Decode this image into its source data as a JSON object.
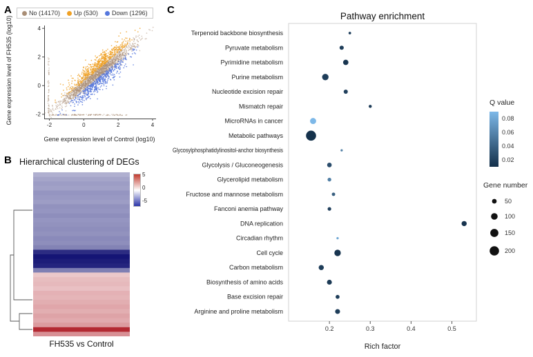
{
  "labels": {
    "a": "A",
    "b": "B",
    "c": "C"
  },
  "chart_data": [
    {
      "id": "deg_scatter",
      "type": "scatter",
      "xlabel": "Gene expression level of Control (log10)",
      "ylabel": "Gene expression level of FH535 (log10)",
      "xlim": [
        -2.3,
        4.2
      ],
      "ylim": [
        -2.3,
        4.2
      ],
      "ticks": [
        -2,
        0,
        2,
        4
      ],
      "seed": 123457,
      "series": [
        {
          "name": "No (14170)",
          "count": 14170,
          "color": "#a98e76",
          "rendered_points": 1600
        },
        {
          "name": "Up (530)",
          "count": 530,
          "color": "#f0a125",
          "rendered_points": 520
        },
        {
          "name": "Down (1296)",
          "count": 1296,
          "color": "#5577dd",
          "rendered_points": 470
        }
      ]
    },
    {
      "id": "deg_heatmap",
      "type": "heatmap",
      "title": "Hierarchical clustering of DEGs",
      "xlabel": "FH535 vs Control",
      "colorbar_ticks": [
        5,
        0,
        -5
      ],
      "value_range": [
        -6.5,
        6.5
      ],
      "colorbar": {
        "top_color": "#c23b2e",
        "mid_color": "#ffffff",
        "bottom_color": "#2b35a8"
      },
      "rows": [
        -2.1,
        -2.4,
        -2.6,
        -2.5,
        -2.8,
        -2.7,
        -2.6,
        -2.9,
        -2.8,
        -3.0,
        -2.8,
        -2.9,
        -3.0,
        -2.9,
        -3.1,
        -3.0,
        -3.3,
        -5.6,
        -6.2,
        -6.0,
        -5.8,
        -3.4,
        1.5,
        1.8,
        1.9,
        1.7,
        2.1,
        2.0,
        2.2,
        2.4,
        2.2,
        2.5,
        2.3,
        2.7,
        5.8,
        3.0
      ]
    },
    {
      "id": "pathway_dotplot",
      "type": "scatter",
      "title": "Pathway enrichment",
      "xlabel": "Rich factor",
      "xlim": [
        0.1,
        0.56
      ],
      "x_ticks": [
        0.2,
        0.3,
        0.4,
        0.5
      ],
      "size_legend": {
        "title": "Gene number",
        "ticks": [
          50,
          100,
          150,
          200
        ]
      },
      "color_legend": {
        "title": "Q value",
        "ticks": [
          0.08,
          0.06,
          0.04,
          0.02
        ],
        "min_color": "#14304a",
        "max_color": "#7db8e8",
        "domain": [
          0.002,
          0.085
        ]
      },
      "pathways": [
        {
          "name": "Terpenoid backbone biosynthesis",
          "rich_factor": 0.25,
          "gene_number": 15,
          "q_value": 0.012
        },
        {
          "name": "Pyruvate metabolism",
          "rich_factor": 0.23,
          "gene_number": 40,
          "q_value": 0.01
        },
        {
          "name": "Pyrimidine metabolism",
          "rich_factor": 0.24,
          "gene_number": 65,
          "q_value": 0.005
        },
        {
          "name": "Purine metabolism",
          "rich_factor": 0.19,
          "gene_number": 95,
          "q_value": 0.01
        },
        {
          "name": "Nucleotide excision repair",
          "rich_factor": 0.24,
          "gene_number": 40,
          "q_value": 0.012
        },
        {
          "name": "Mismatch repair",
          "rich_factor": 0.3,
          "gene_number": 22,
          "q_value": 0.01
        },
        {
          "name": "MicroRNAs in cancer",
          "rich_factor": 0.16,
          "gene_number": 85,
          "q_value": 0.085
        },
        {
          "name": "Metabolic pathways",
          "rich_factor": 0.155,
          "gene_number": 230,
          "q_value": 0.003
        },
        {
          "name": "Glycosylphosphatidylinositol-anchor biosynthesis",
          "rich_factor": 0.23,
          "gene_number": 10,
          "q_value": 0.05
        },
        {
          "name": "Glycolysis / Gluconeogenesis",
          "rich_factor": 0.2,
          "gene_number": 48,
          "q_value": 0.02
        },
        {
          "name": "Glycerolipid metabolism",
          "rich_factor": 0.2,
          "gene_number": 32,
          "q_value": 0.05
        },
        {
          "name": "Fructose and mannose metabolism",
          "rich_factor": 0.21,
          "gene_number": 26,
          "q_value": 0.03
        },
        {
          "name": "Fanconi anemia pathway",
          "rich_factor": 0.2,
          "gene_number": 30,
          "q_value": 0.012
        },
        {
          "name": "DNA replication",
          "rich_factor": 0.53,
          "gene_number": 60,
          "q_value": 0.004
        },
        {
          "name": "Circadian rhythm",
          "rich_factor": 0.22,
          "gene_number": 12,
          "q_value": 0.075
        },
        {
          "name": "Cell cycle",
          "rich_factor": 0.22,
          "gene_number": 95,
          "q_value": 0.005
        },
        {
          "name": "Carbon metabolism",
          "rich_factor": 0.18,
          "gene_number": 60,
          "q_value": 0.01
        },
        {
          "name": "Biosynthesis of amino acids",
          "rich_factor": 0.2,
          "gene_number": 55,
          "q_value": 0.008
        },
        {
          "name": "Base excision repair",
          "rich_factor": 0.22,
          "gene_number": 35,
          "q_value": 0.01
        },
        {
          "name": "Arginine and proline metabolism",
          "rich_factor": 0.22,
          "gene_number": 55,
          "q_value": 0.01
        }
      ]
    }
  ]
}
